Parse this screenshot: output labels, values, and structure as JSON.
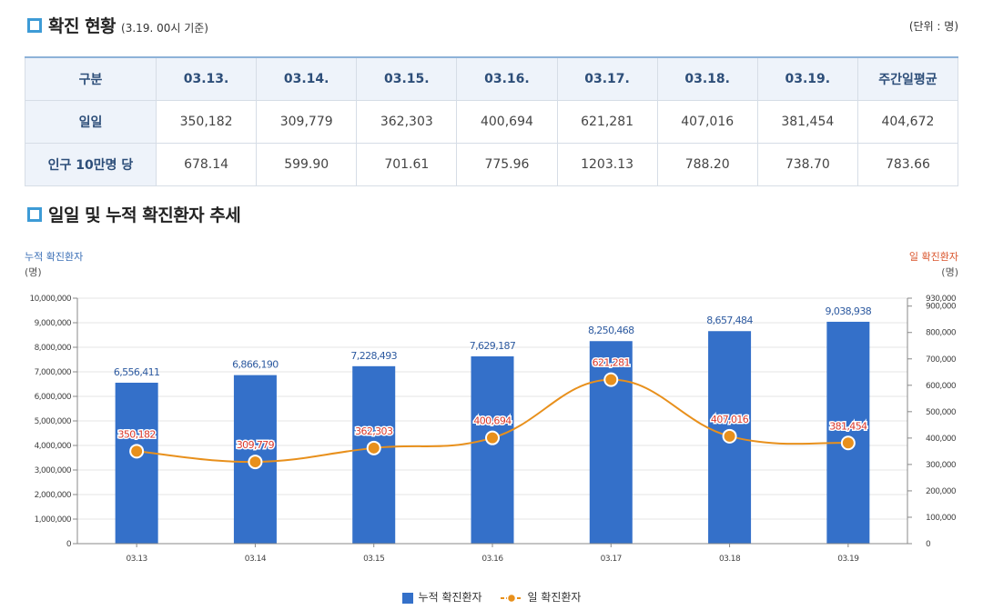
{
  "header": {
    "title": "확진 현황",
    "subtitle": "(3.19. 00시 기준)",
    "unit": "(단위 : 명)"
  },
  "table": {
    "columns": [
      "구분",
      "03.13.",
      "03.14.",
      "03.15.",
      "03.16.",
      "03.17.",
      "03.18.",
      "03.19.",
      "주간일평균"
    ],
    "rows": [
      {
        "label": "일일",
        "values": [
          "350,182",
          "309,779",
          "362,303",
          "400,694",
          "621,281",
          "407,016",
          "381,454",
          "404,672"
        ]
      },
      {
        "label": "인구 10만명 당",
        "values": [
          "678.14",
          "599.90",
          "701.61",
          "775.96",
          "1203.13",
          "788.20",
          "738.70",
          "783.66"
        ]
      }
    ]
  },
  "chart_section": {
    "title": "일일 및 누적 확진환자 추세"
  },
  "chart_data": {
    "type": "bar",
    "categories": [
      "03.13",
      "03.14",
      "03.15",
      "03.16",
      "03.17",
      "03.18",
      "03.19"
    ],
    "series": [
      {
        "name": "누적 확진환자",
        "type": "bar",
        "axis": "left",
        "values": [
          6556411,
          6866190,
          7228493,
          7629187,
          8250468,
          8657484,
          9038938
        ],
        "labels": [
          "6,556,411",
          "6,866,190",
          "7,228,493",
          "7,629,187",
          "8,250,468",
          "8,657,484",
          "9,038,938"
        ]
      },
      {
        "name": "일 확진환자",
        "type": "line",
        "axis": "right",
        "values": [
          350182,
          309779,
          362303,
          400694,
          621281,
          407016,
          381454
        ],
        "labels": [
          "350,182",
          "309,779",
          "362,303",
          "400,694",
          "621,281",
          "407,016",
          "381,454"
        ]
      }
    ],
    "y_left": {
      "title": "누적 확진환자",
      "unit": "(명)",
      "range": [
        0,
        10000000
      ],
      "ticks": [
        0,
        1000000,
        2000000,
        3000000,
        4000000,
        5000000,
        6000000,
        7000000,
        8000000,
        9000000,
        10000000
      ],
      "tick_labels": [
        "0",
        "1,000,000",
        "2,000,000",
        "3,000,000",
        "4,000,000",
        "5,000,000",
        "6,000,000",
        "7,000,000",
        "8,000,000",
        "9,000,000",
        "10,000,000"
      ]
    },
    "y_right": {
      "title": "일 확진환자",
      "unit": "(명)",
      "range": [
        0,
        930000
      ],
      "ticks": [
        0,
        100000,
        200000,
        300000,
        400000,
        500000,
        600000,
        700000,
        800000,
        900000,
        930000
      ],
      "tick_labels": [
        "0",
        "100,000",
        "200,000",
        "300,000",
        "400,000",
        "500,000",
        "600,000",
        "700,000",
        "800,000",
        "900,000",
        "930,000"
      ]
    },
    "grid": true,
    "legend": "bottom-center",
    "colors": {
      "bar": "#3470c9",
      "line": "#e8901c",
      "bar_label": "#2d5aa0",
      "line_label": "#d9382b",
      "right_title": "#d9542b",
      "left_title": "#3b6fb6"
    }
  }
}
